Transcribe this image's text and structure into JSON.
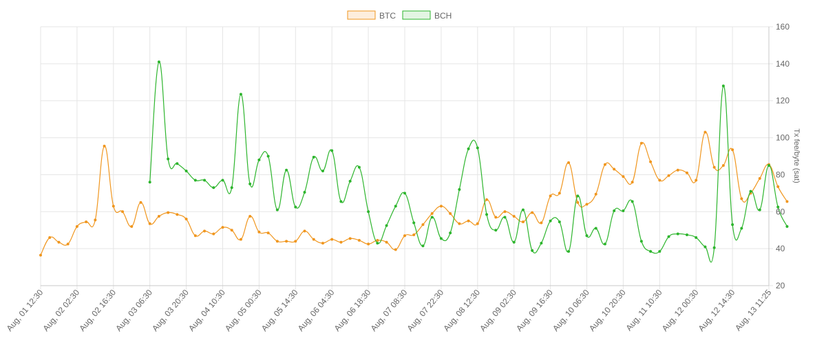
{
  "chart_data": {
    "type": "line",
    "title": "",
    "xlabel": "",
    "ylabel": "Tx fee/byte (sat)",
    "ylim": [
      20,
      160
    ],
    "y_ticks": [
      "20",
      "40",
      "60",
      "80",
      "100",
      "120",
      "140",
      "160"
    ],
    "y_axis_position": "right",
    "grid": true,
    "legend_position": "top-center",
    "x_tick_labels": [
      "Aug, 01 12:30",
      "Aug, 02 02:30",
      "Aug, 02 16:30",
      "Aug, 03 06:30",
      "Aug, 03 20:30",
      "Aug, 04 10:30",
      "Aug, 05 00:30",
      "Aug, 05 14:30",
      "Aug, 06 04:30",
      "Aug, 06 18:30",
      "Aug, 07 08:30",
      "Aug, 07 22:30",
      "Aug, 08 12:30",
      "Aug, 09 02:30",
      "Aug, 09 16:30",
      "Aug, 10 06:30",
      "Aug, 10 20:30",
      "Aug, 11 10:30",
      "Aug, 12 00:30",
      "Aug, 12 14:30",
      "Aug, 13 11:25"
    ],
    "series": [
      {
        "name": "BTC",
        "color": "#f0961e",
        "points": [
          [
            0,
            36.5
          ],
          [
            0.25,
            46
          ],
          [
            0.5,
            43.5
          ],
          [
            0.75,
            42.5
          ],
          [
            1,
            52
          ],
          [
            1.25,
            54.5
          ],
          [
            1.5,
            55.5
          ],
          [
            1.75,
            95.5
          ],
          [
            2,
            63
          ],
          [
            2.25,
            60
          ],
          [
            2.5,
            52
          ],
          [
            2.75,
            65
          ],
          [
            3,
            53.5
          ],
          [
            3.25,
            57.5
          ],
          [
            3.5,
            59.5
          ],
          [
            3.75,
            58.5
          ],
          [
            4,
            56
          ],
          [
            4.25,
            47
          ],
          [
            4.5,
            49.5
          ],
          [
            4.75,
            48
          ],
          [
            5,
            51.5
          ],
          [
            5.25,
            50
          ],
          [
            5.5,
            45
          ],
          [
            5.75,
            57.5
          ],
          [
            6,
            49
          ],
          [
            6.25,
            48.5
          ],
          [
            6.5,
            44
          ],
          [
            6.75,
            44
          ],
          [
            7,
            44
          ],
          [
            7.25,
            49.5
          ],
          [
            7.5,
            45
          ],
          [
            7.75,
            43
          ],
          [
            8,
            45
          ],
          [
            8.25,
            43.5
          ],
          [
            8.5,
            45.5
          ],
          [
            8.75,
            44.5
          ],
          [
            9,
            42.5
          ],
          [
            9.25,
            44.5
          ],
          [
            9.5,
            43.5
          ],
          [
            9.75,
            39.5
          ],
          [
            10,
            47
          ],
          [
            10.25,
            47.5
          ],
          [
            10.5,
            53
          ],
          [
            10.75,
            59
          ],
          [
            11,
            63
          ],
          [
            11.25,
            59
          ],
          [
            11.5,
            53.5
          ],
          [
            11.75,
            55
          ],
          [
            12,
            53.5
          ],
          [
            12.25,
            66.5
          ],
          [
            12.5,
            57
          ],
          [
            12.75,
            60
          ],
          [
            13,
            57.5
          ],
          [
            13.25,
            54.5
          ],
          [
            13.5,
            59.5
          ],
          [
            13.75,
            54
          ],
          [
            14,
            68.5
          ],
          [
            14.25,
            70
          ],
          [
            14.5,
            86.5
          ],
          [
            14.75,
            65
          ],
          [
            15,
            64
          ],
          [
            15.25,
            69.5
          ],
          [
            15.5,
            85.5
          ],
          [
            15.75,
            83
          ],
          [
            16,
            79
          ],
          [
            16.25,
            76
          ],
          [
            16.5,
            97
          ],
          [
            16.75,
            87
          ],
          [
            17,
            77
          ],
          [
            17.25,
            79.5
          ],
          [
            17.5,
            82.5
          ],
          [
            17.75,
            81
          ],
          [
            18,
            77
          ],
          [
            18.25,
            103
          ],
          [
            18.5,
            84
          ],
          [
            18.75,
            85
          ],
          [
            19,
            93.5
          ],
          [
            19.25,
            67
          ],
          [
            19.5,
            70
          ],
          [
            19.75,
            78
          ],
          [
            20,
            85.5
          ],
          [
            20.25,
            73.5
          ],
          [
            20.5,
            65.5
          ]
        ]
      },
      {
        "name": "BCH",
        "color": "#2db52d",
        "points": [
          [
            3,
            76
          ],
          [
            3.25,
            141
          ],
          [
            3.5,
            88.5
          ],
          [
            3.75,
            86
          ],
          [
            4,
            82
          ],
          [
            4.25,
            77
          ],
          [
            4.5,
            77
          ],
          [
            4.75,
            73
          ],
          [
            5,
            77
          ],
          [
            5.25,
            73
          ],
          [
            5.5,
            123.5
          ],
          [
            5.75,
            75
          ],
          [
            6,
            88
          ],
          [
            6.25,
            90
          ],
          [
            6.5,
            61
          ],
          [
            6.75,
            82.5
          ],
          [
            7,
            62.5
          ],
          [
            7.25,
            70.5
          ],
          [
            7.5,
            89.5
          ],
          [
            7.75,
            82
          ],
          [
            8,
            93
          ],
          [
            8.25,
            65.5
          ],
          [
            8.5,
            76.5
          ],
          [
            8.75,
            84
          ],
          [
            9,
            60
          ],
          [
            9.25,
            43
          ],
          [
            9.5,
            52.5
          ],
          [
            9.75,
            63
          ],
          [
            10,
            70
          ],
          [
            10.25,
            54
          ],
          [
            10.5,
            41.5
          ],
          [
            10.75,
            57
          ],
          [
            11,
            45.5
          ],
          [
            11.25,
            48.5
          ],
          [
            11.5,
            72
          ],
          [
            11.75,
            94
          ],
          [
            12,
            94.5
          ],
          [
            12.25,
            58.5
          ],
          [
            12.5,
            50
          ],
          [
            12.75,
            57
          ],
          [
            13,
            43.5
          ],
          [
            13.25,
            61
          ],
          [
            13.5,
            39
          ],
          [
            13.75,
            43
          ],
          [
            14,
            55
          ],
          [
            14.25,
            54.5
          ],
          [
            14.5,
            38.5
          ],
          [
            14.75,
            68.5
          ],
          [
            15,
            47
          ],
          [
            15.25,
            51
          ],
          [
            15.5,
            42.5
          ],
          [
            15.75,
            60.5
          ],
          [
            16,
            60.5
          ],
          [
            16.25,
            65.5
          ],
          [
            16.5,
            44
          ],
          [
            16.75,
            38.5
          ],
          [
            17,
            38.5
          ],
          [
            17.25,
            46.5
          ],
          [
            17.5,
            48
          ],
          [
            17.75,
            47.5
          ],
          [
            18,
            46
          ],
          [
            18.25,
            41
          ],
          [
            18.5,
            40.5
          ],
          [
            18.75,
            128
          ],
          [
            19,
            53
          ],
          [
            19.25,
            51
          ],
          [
            19.5,
            71
          ],
          [
            19.75,
            61
          ],
          [
            20,
            85
          ],
          [
            20.25,
            62.5
          ],
          [
            20.5,
            52
          ]
        ]
      }
    ]
  }
}
